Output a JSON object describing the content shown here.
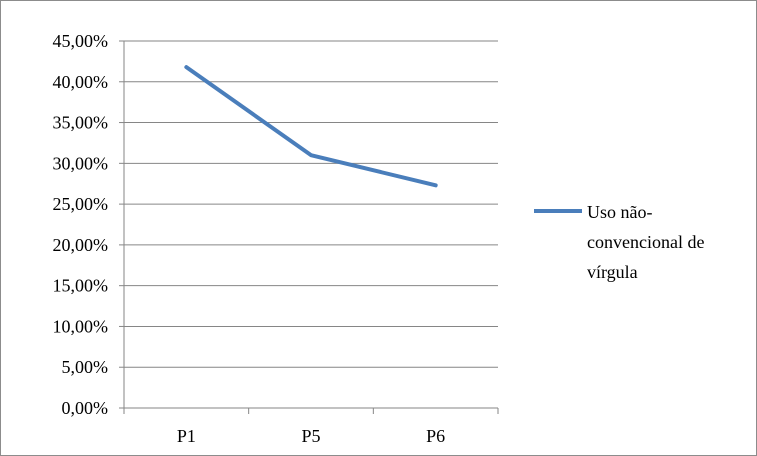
{
  "chart_data": {
    "type": "line",
    "categories": [
      "P1",
      "P5",
      "P6"
    ],
    "series": [
      {
        "name": "Uso não-convencional de vírgula",
        "name_lines": [
          "Uso não-",
          "convencional de",
          "vírgula"
        ],
        "values": [
          41.8,
          31.0,
          27.3
        ],
        "color": "#4a7ebb"
      }
    ],
    "y_ticks": [
      "0,00%",
      "5,00%",
      "10,00%",
      "15,00%",
      "20,00%",
      "25,00%",
      "30,00%",
      "35,00%",
      "40,00%",
      "45,00%"
    ],
    "ylim": [
      0,
      45
    ],
    "y_step": 5,
    "grid": true,
    "legend_position": "right",
    "title": "",
    "xlabel": "",
    "ylabel": "",
    "colors": {
      "gridline": "#868686",
      "axis": "#868686",
      "frame": "#8c8c8c"
    }
  }
}
